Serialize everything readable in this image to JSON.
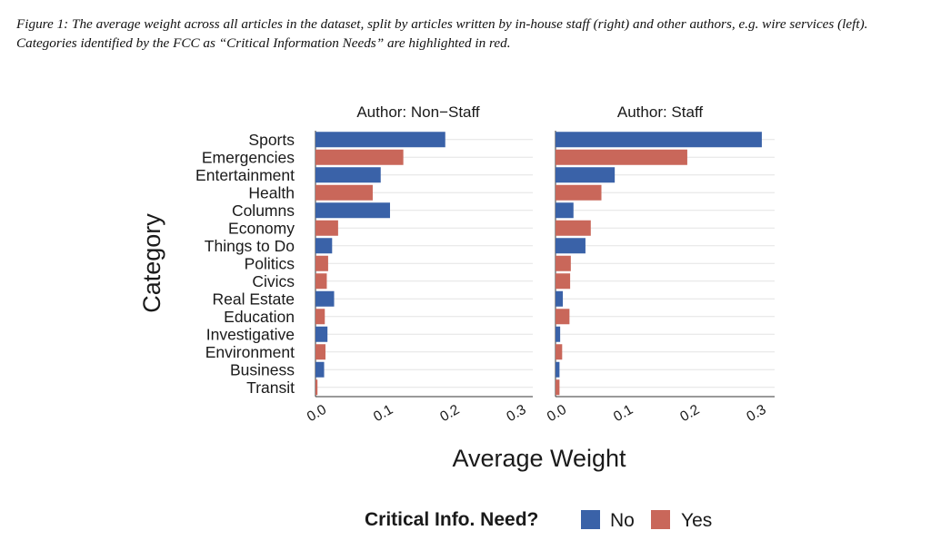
{
  "caption": "Figure 1: The average weight across all articles in the dataset, split by articles written by in-house staff (right) and other authors, e.g. wire services (left). Categories identified by the FCC as “Critical Information Needs” are highlighted in red.",
  "chart_data": {
    "type": "bar",
    "orientation": "horizontal",
    "xlabel": "Average Weight",
    "ylabel": "Category",
    "xlim": [
      0,
      0.3
    ],
    "xticks": [
      "0.0",
      "0.1",
      "0.2",
      "0.3"
    ],
    "grid": true,
    "legend": {
      "title": "Critical Info. Need?",
      "position": "bottom",
      "entries": [
        {
          "label": "No",
          "color": "#3a62a8"
        },
        {
          "label": "Yes",
          "color": "#c9675a"
        }
      ]
    },
    "categories": [
      "Sports",
      "Emergencies",
      "Entertainment",
      "Health",
      "Columns",
      "Economy",
      "Things to Do",
      "Politics",
      "Civics",
      "Real Estate",
      "Education",
      "Investigative",
      "Environment",
      "Business",
      "Transit"
    ],
    "critical_info_need": [
      "No",
      "Yes",
      "No",
      "Yes",
      "No",
      "Yes",
      "No",
      "Yes",
      "Yes",
      "No",
      "Yes",
      "No",
      "Yes",
      "No",
      "Yes"
    ],
    "facets": [
      {
        "title": "Author: Non−Staff",
        "values": [
          0.195,
          0.132,
          0.098,
          0.086,
          0.112,
          0.034,
          0.025,
          0.019,
          0.017,
          0.028,
          0.014,
          0.018,
          0.015,
          0.013,
          0.003
        ]
      },
      {
        "title": "Author: Staff",
        "values": [
          0.31,
          0.198,
          0.089,
          0.069,
          0.027,
          0.053,
          0.045,
          0.023,
          0.022,
          0.011,
          0.021,
          0.007,
          0.01,
          0.006,
          0.006
        ]
      }
    ]
  }
}
